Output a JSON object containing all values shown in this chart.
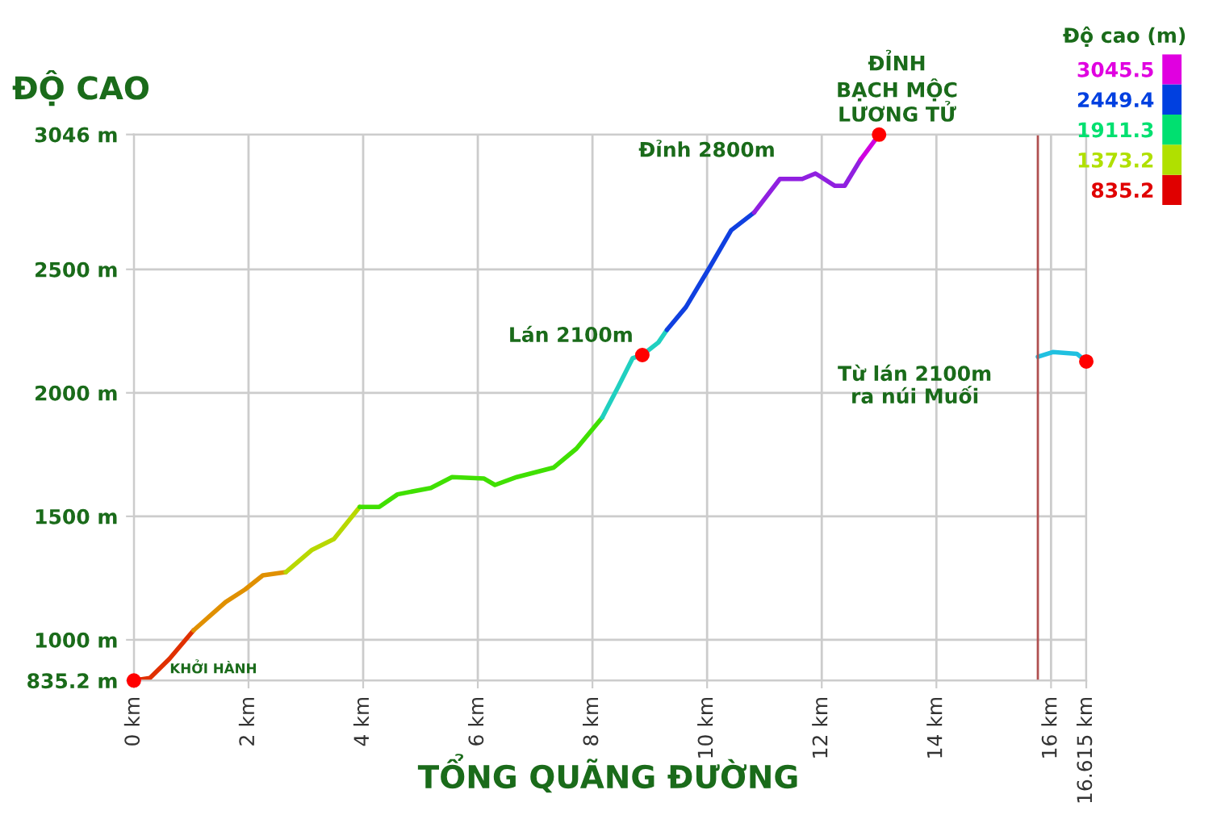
{
  "chart_data": {
    "type": "line",
    "ylabel": "ĐỘ CAO",
    "xlabel": "TỔNG QUÃNG ĐƯỜNG",
    "xlim": [
      0,
      16.615
    ],
    "xticks": [
      {
        "value": 0,
        "label": "0 km"
      },
      {
        "value": 2,
        "label": "2 km"
      },
      {
        "value": 4,
        "label": "4 km"
      },
      {
        "value": 6,
        "label": "6 km"
      },
      {
        "value": 8,
        "label": "8 km"
      },
      {
        "value": 10,
        "label": "10 km"
      },
      {
        "value": 12,
        "label": "12 km"
      },
      {
        "value": 14,
        "label": "14 km"
      },
      {
        "value": 16,
        "label": "16 km"
      },
      {
        "value": 16.615,
        "label": "16.615 km"
      }
    ],
    "ylim": [
      835.2,
      3046
    ],
    "yticks": [
      {
        "value": 835.2,
        "label": "835.2 m"
      },
      {
        "value": 1000,
        "label": "1000 m"
      },
      {
        "value": 1500,
        "label": "1500 m"
      },
      {
        "value": 2000,
        "label": "2000 m"
      },
      {
        "value": 2500,
        "label": "2500 m"
      },
      {
        "value": 3046,
        "label": "3046 m"
      }
    ],
    "grid": true,
    "clabel": "Độ cao (m)",
    "cticks": [
      835.2,
      1373.2,
      1911.3,
      2449.4,
      3045.5
    ],
    "colors": [
      "#e00000",
      "#b0e000",
      "#00e070",
      "#0040e0",
      "#e000e0"
    ],
    "series": [
      {
        "type": "line",
        "color": "#e03000",
        "x": [
          0,
          0.28,
          0.62,
          1.04
        ],
        "values": [
          835.2,
          845,
          923,
          1038
        ]
      },
      {
        "type": "line",
        "color": "#e09000",
        "x": [
          1.04,
          1.6,
          1.94,
          2.25,
          2.65
        ],
        "values": [
          1038,
          1153,
          1204,
          1261,
          1274
        ]
      },
      {
        "type": "line",
        "color": "#b8d800",
        "x": [
          2.65,
          3.1,
          3.49,
          3.94
        ],
        "values": [
          1274,
          1363,
          1408,
          1538
        ]
      },
      {
        "type": "line",
        "color": "#40e000",
        "x": [
          3.94,
          4.28,
          4.6,
          5.18,
          5.55,
          6.11,
          6.3,
          6.68,
          7.32,
          7.72,
          8.17
        ],
        "values": [
          1538,
          1538,
          1589,
          1615,
          1659,
          1653,
          1627,
          1659,
          1697,
          1774,
          1900
        ]
      },
      {
        "type": "line",
        "color": "#20d0c0",
        "x": [
          8.17,
          8.45,
          8.7,
          8.87,
          9.15,
          9.3
        ],
        "values": [
          1900,
          2025,
          2140,
          2153,
          2204,
          2255
        ]
      },
      {
        "type": "line",
        "color": "#1040e0",
        "x": [
          9.3,
          9.63,
          10.06,
          10.42,
          10.82
        ],
        "values": [
          2255,
          2347,
          2514,
          2658,
          2730
        ]
      },
      {
        "type": "line",
        "color": "#9020e0",
        "x": [
          10.82,
          11.27,
          11.66,
          11.89,
          12.23,
          12.4,
          12.68
        ],
        "values": [
          2730,
          2866,
          2866,
          2888,
          2838,
          2838,
          2945
        ]
      },
      {
        "type": "line",
        "color": "#d000e0",
        "x": [
          12.68,
          13.0
        ],
        "values": [
          2945,
          3045.5
        ]
      },
      {
        "type": "line",
        "color": "#20c0e0",
        "x": [
          15.77,
          16.03,
          16.45,
          16.615
        ],
        "values": [
          2146,
          2165,
          2158,
          2127
        ]
      },
      {
        "type": "scatter",
        "color": "#ff0000",
        "marker": "circle",
        "x": [
          0,
          8.87,
          13.0,
          16.615
        ],
        "values": [
          835.2,
          2153,
          3045.5,
          2127
        ]
      }
    ],
    "ref_lines": [
      {
        "axis": "x",
        "value": 15.77,
        "color": "#b05050"
      }
    ],
    "annotations": [
      {
        "text": "KHỞI HÀNH",
        "x": 0,
        "y": 835.2
      },
      {
        "text": "Lán 2100m",
        "x": 8.87,
        "y": 2153
      },
      {
        "text": "Đỉnh 2800m",
        "x": 11.66,
        "y": 2866
      },
      {
        "text": "ĐỈNH\nBẠCH MỘC\nLƯƠNG TỬ",
        "x": 13.0,
        "y": 3045.5
      },
      "Từ lán 2100m\nra núi Muối"
    ]
  }
}
